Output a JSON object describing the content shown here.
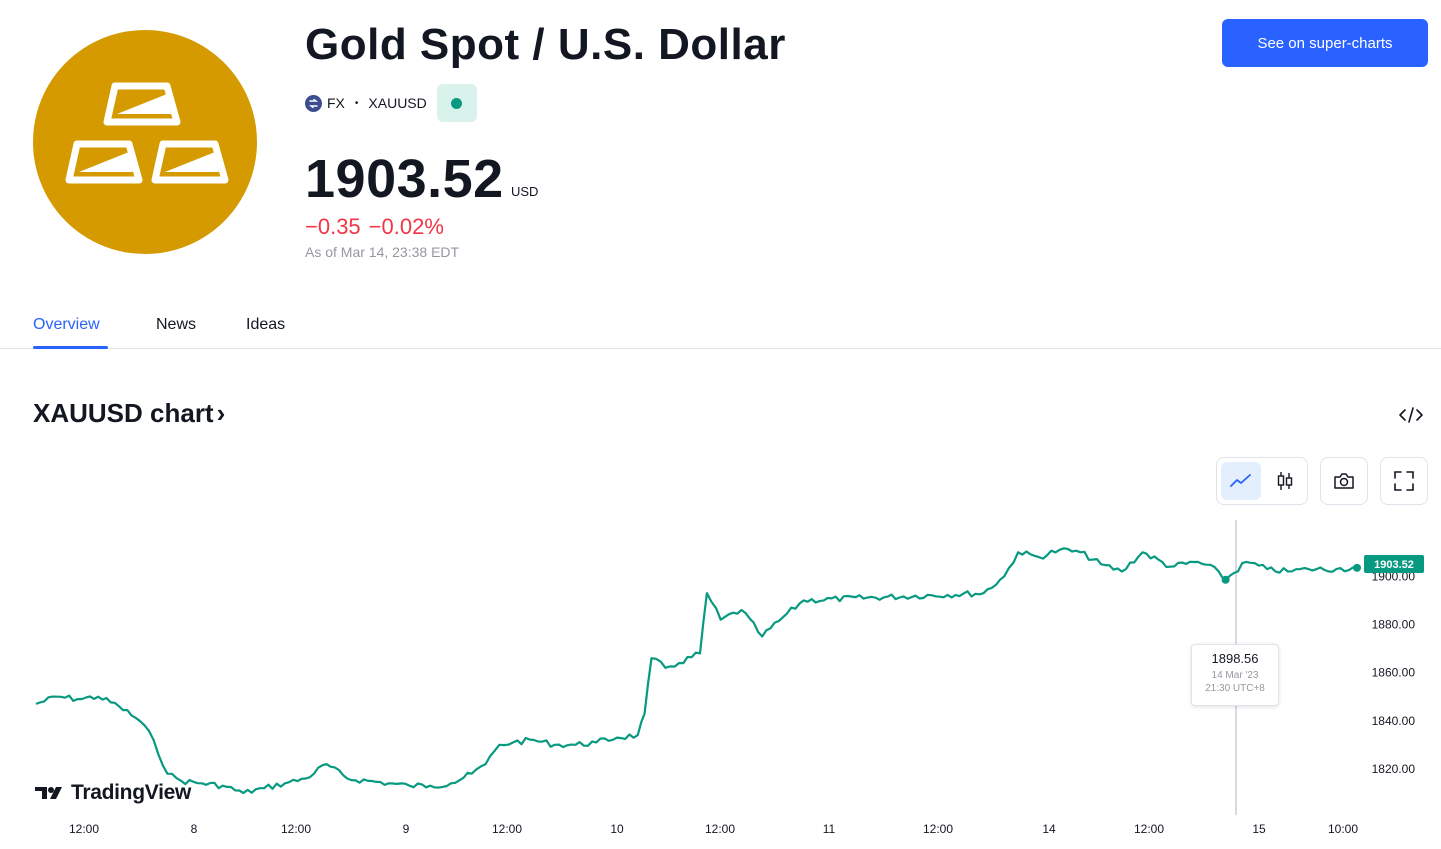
{
  "header": {
    "title": "Gold Spot / U.S. Dollar",
    "exchange": "FX",
    "symbol": "XAUUSD",
    "price": "1903.52",
    "currency": "USD",
    "change_abs": "−0.35",
    "change_pct": "−0.02%",
    "as_of": "As of Mar 14, 23:38 EDT",
    "super_charts_label": "See on super-charts",
    "market_status": "open"
  },
  "tabs": [
    {
      "label": "Overview",
      "active": true
    },
    {
      "label": "News",
      "active": false
    },
    {
      "label": "Ideas",
      "active": false
    }
  ],
  "chart_section": {
    "heading": "XAUUSD chart",
    "heading_chevron": "›"
  },
  "toolbar": [
    {
      "name": "line-chart-icon",
      "active": true
    },
    {
      "name": "candles-icon",
      "active": false
    },
    {
      "name": "camera-icon",
      "active": false
    },
    {
      "name": "fullscreen-icon",
      "active": false
    }
  ],
  "tooltip": {
    "value": "1898.56",
    "date": "14 Mar '23",
    "time": "21:30 UTC+8"
  },
  "branding": "TradingView",
  "colors": {
    "accent": "#2962ff",
    "line": "#089981",
    "negative": "#f23645",
    "gold": "#d49a00"
  },
  "chart_data": {
    "type": "line",
    "series": [
      {
        "points": [
          [
            "7 06:00",
            1847
          ],
          [
            "7 09:00",
            1850
          ],
          [
            "7 12:00",
            1849
          ],
          [
            "7 15:00",
            1850
          ],
          [
            "7 18:00",
            1846
          ],
          [
            "7 21:00",
            1840
          ],
          [
            "7 23:00",
            1832
          ],
          [
            "8 01:00",
            1818
          ],
          [
            "8 03:00",
            1815
          ],
          [
            "8 06:00",
            1814
          ],
          [
            "8 09:00",
            1813
          ],
          [
            "8 12:00",
            1810
          ],
          [
            "8 15:00",
            1812
          ],
          [
            "8 18:00",
            1814
          ],
          [
            "8 21:00",
            1816
          ],
          [
            "9 00:00",
            1822
          ],
          [
            "9 03:00",
            1816
          ],
          [
            "9 06:00",
            1815
          ],
          [
            "9 09:00",
            1814
          ],
          [
            "9 12:00",
            1813
          ],
          [
            "9 15:00",
            1813
          ],
          [
            "9 18:00",
            1814
          ],
          [
            "9 21:00",
            1818
          ],
          [
            "9 23:00",
            1822
          ],
          [
            "10 01:00",
            1830
          ],
          [
            "10 03:00",
            1831
          ],
          [
            "10 06:00",
            1832
          ],
          [
            "10 09:00",
            1830
          ],
          [
            "10 12:00",
            1830
          ],
          [
            "10 15:00",
            1831
          ],
          [
            "10 18:00",
            1833
          ],
          [
            "10 21:00",
            1834
          ],
          [
            "10 22:00",
            1843
          ],
          [
            "10 23:00",
            1866
          ],
          [
            "11 01:00",
            1862
          ],
          [
            "11 03:00",
            1864
          ],
          [
            "11 06:00",
            1868
          ],
          [
            "11 07:00",
            1893
          ],
          [
            "11 09:00",
            1882
          ],
          [
            "11 12:00",
            1886
          ],
          [
            "11 15:00",
            1875
          ],
          [
            "11 18:00",
            1883
          ],
          [
            "11 21:00",
            1890
          ],
          [
            "12 23:00",
            1893
          ],
          [
            "13 02:00",
            1900
          ],
          [
            "13 04:00",
            1910
          ],
          [
            "13 07:00",
            1908
          ],
          [
            "13 10:00",
            1911
          ],
          [
            "13 13:00",
            1910
          ],
          [
            "13 16:00",
            1905
          ],
          [
            "13 19:00",
            1902
          ],
          [
            "13 22:00",
            1910
          ],
          [
            "14 02:00",
            1904
          ],
          [
            "14 06:00",
            1906
          ],
          [
            "14 09:00",
            1902
          ],
          [
            "14 10:00",
            1898.56
          ],
          [
            "14 13:00",
            1906
          ],
          [
            "14 16:00",
            1903
          ],
          [
            "14 19:00",
            1902
          ],
          [
            "14 22:00",
            1903
          ],
          [
            "15 02:00",
            1903
          ],
          [
            "15 05:00",
            1903.52
          ]
        ]
      }
    ],
    "x_ticks": [
      "12:00",
      "8",
      "12:00",
      "9",
      "12:00",
      "10",
      "12:00",
      "11",
      "12:00",
      "14",
      "12:00",
      "15",
      "10:00"
    ],
    "y_ticks": [
      "1820.00",
      "1840.00",
      "1860.00",
      "1880.00",
      "1900.00"
    ],
    "ylim": [
      1805,
      1918
    ],
    "last_value_label": "1903.52",
    "grid": false
  }
}
